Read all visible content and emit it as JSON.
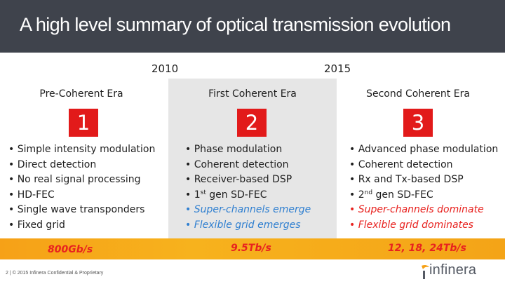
{
  "slide": {
    "title": "A high level summary of optical transmission evolution"
  },
  "timeline": {
    "year_1": "2010",
    "year_2": "2015"
  },
  "columns": [
    {
      "era": "Pre-Coherent Era",
      "number": "1",
      "bullets": [
        "• Simple intensity modulation",
        "• Direct detection",
        "• No real signal processing",
        "• HD-FEC",
        "• Single wave transponders",
        "• Fixed grid"
      ],
      "speed": "800Gb/s"
    },
    {
      "era": "First Coherent Era",
      "number": "2",
      "bullets": [
        "• Phase modulation",
        "• Coherent detection",
        "• Receiver-based DSP",
        {
          "pre": "• 1",
          "sup": "st",
          "post": " gen SD-FEC"
        },
        "• Super-channels emerge",
        "• Flexible grid emerges"
      ],
      "speed": "9.5Tb/s"
    },
    {
      "era": "Second Coherent Era",
      "number": "3",
      "bullets": [
        "• Advanced phase modulation",
        "• Coherent detection",
        "• Rx and Tx-based DSP",
        {
          "pre": "• 2",
          "sup": "nd",
          "post": " gen SD-FEC"
        },
        "• Super-channels dominate",
        "• Flexible grid dominates"
      ],
      "speed": "12, 18, 24Tb/s"
    }
  ],
  "colors": {
    "header_bg": "#3f434c",
    "badge_red": "#e21a1a",
    "emerging_blue": "#2f7fd0",
    "dominant_red": "#e8221f",
    "speed_bar_orange": "#f6a117"
  },
  "footer": {
    "text": "2 | © 2015 Infinera Confidential & Proprietary"
  },
  "logo": {
    "text": "infinera",
    "icon": "infinera-swoosh-icon"
  }
}
